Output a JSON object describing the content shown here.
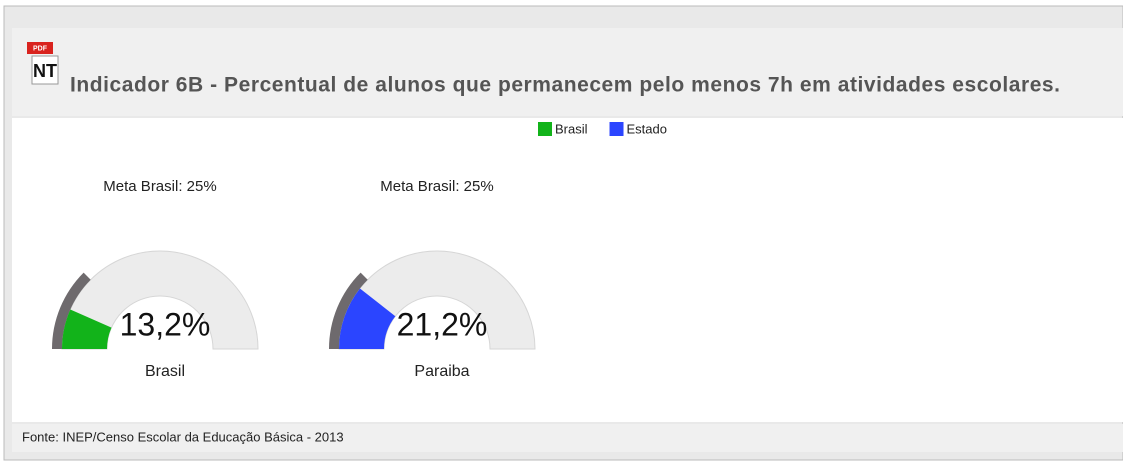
{
  "header": {
    "pdf_icon": "PDF",
    "badge": "NT",
    "title": "Indicador 6B - Percentual de alunos que permanecem pelo menos 7h em atividades escolares."
  },
  "chart_data": {
    "type": "gauge",
    "legend": [
      {
        "name": "Brasil",
        "color": "#12b31a"
      },
      {
        "name": "Estado",
        "color": "#2b45ff"
      }
    ],
    "ylim": [
      0,
      100
    ],
    "gauges": [
      {
        "name": "Brasil",
        "target_label": "Meta Brasil: 25%",
        "target": 25,
        "value": 13.2,
        "value_label": "13,2%",
        "color": "#12b31a"
      },
      {
        "name": "Paraiba",
        "target_label": "Meta Brasil: 25%",
        "target": 25,
        "value": 21.2,
        "value_label": "21,2%",
        "color": "#2b45ff"
      }
    ]
  },
  "footer": "Fonte: INEP/Censo Escolar da Educação Básica - 2013"
}
